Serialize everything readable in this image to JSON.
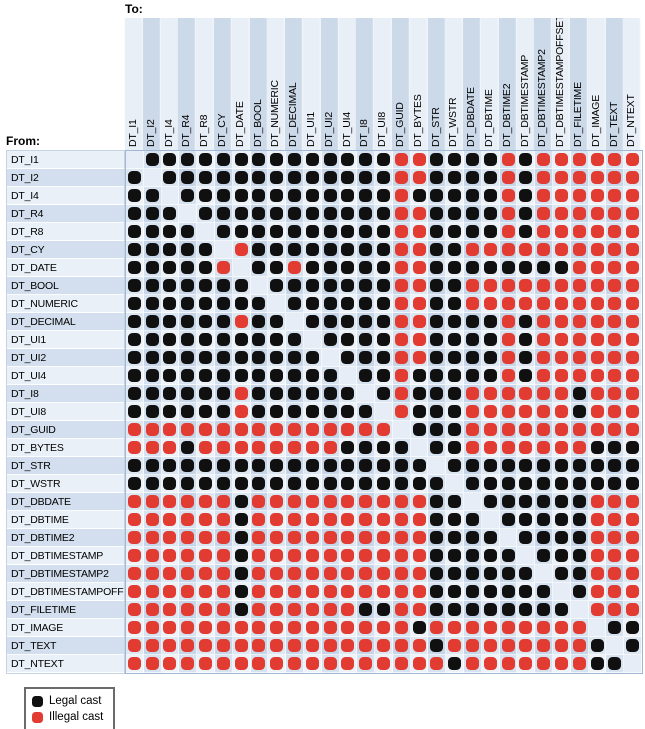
{
  "to_title": "To:",
  "from_title": "From:",
  "legend": {
    "legal_label": "Legal cast",
    "illegal_label": "Illegal cast"
  },
  "chart_data": {
    "type": "heatmap",
    "title": "Legal and illegal casts between data types",
    "x_axis_title": "To:",
    "y_axis_title": "From:",
    "legend": {
      "B": "Legal cast",
      "R": "Illegal cast",
      "-": "same type (no dot)"
    },
    "colors": {
      "legal": "#101010",
      "illegal": "#e13b32"
    },
    "categories": [
      "DT_I1",
      "DT_I2",
      "DT_I4",
      "DT_R4",
      "DT_R8",
      "DT_CY",
      "DT_DATE",
      "DT_BOOL",
      "DT_NUMERIC",
      "DT_DECIMAL",
      "DT_UI1",
      "DT_UI2",
      "DT_UI4",
      "DT_I8",
      "DT_UI8",
      "DT_GUID",
      "DT_BYTES",
      "DT_STR",
      "DT_WSTR",
      "DT_DBDATE",
      "DT_DBTIME",
      "DT_DBTIME2",
      "DT_DBTIMESTAMP",
      "DT_DBTIMESTAMP2",
      "DT_DBTIMESTAMPOFFSET",
      "DT_FILETIME",
      "DT_IMAGE",
      "DT_TEXT",
      "DT_NTEXT"
    ],
    "matrix": [
      "-BBBBBBBBBBBBBBRRBBBBRBRRRRRR",
      "B-BBBBBBBBBBBBBRRBBBBRBRRRRRR",
      "BB-BBBBBBBBBBBBRBBBBBRBRRRRRR",
      "BBB-BBBBBBBBBBBRRBBBBRBRRRRRR",
      "BBBB-BBBBBBBBBBRRBBBBRBRRRRRR",
      "BBBBB-RBBBBBBBBRRBBRRRRRRRRRR",
      "BBBBBR-BBRBBBBBRRBBBBBBBBRRRR",
      "BBBBBBB-BBBBBBBRRBBRRRRRRRRRR",
      "BBBBBBBB-BBBBBBRRBBRRRRRRRRRR",
      "BBBBBBRBB-BBBBBRRBBBBRBRRRRRR",
      "BBBBBBBBBB-BBBBRRBBBBRBRRRRRR",
      "BBBBBBBBBBB-BBBRRBBBBRBRRRRRR",
      "BBBBBBBBBBBB-BBRBBBBBRBRRRRRR",
      "BBBBBBRBBBBBB-BRBBBRRRRRRBRRR",
      "BBBBBBRBBBBBBB-RBBBRRRRRRBRRR",
      "RRRRRRRRRRRRRRR-BBBRRRRRRRRRR",
      "RRRBRRRRRRRRBBBB-BBRRRRRRRBBB",
      "BBBBBBBBBBBBBBBBB-BBBBBBBBBBB",
      "BBBBBBBBBBBBBBBBBB-BBBBBBBBBB",
      "RRRRRRBRRRRRRRRRRBB-BBBBBBRRR",
      "RRRRRRBRRRRRRRRRRBBB-BBBBBRRR",
      "RRRRRRBRRRRRRRRRRBBBB-BBBBRRR",
      "RRRRRRBRRRRRRRRRRBBBBB-BBBRRR",
      "RRRRRRBRRRRRRRRRRBBBBBB-BBRRR",
      "RRRRRRBRRRRRRRRRRBBBBBBB-BRRR",
      "RRRRRRBRRRRRRBBRRBBBBBBBB-RRR",
      "RRRRRRRRRRRRRRRRBRRRRRRRRR-BB",
      "RRRRRRRRRRRRRRRRRBRRRRRRRRB-B",
      "RRRRRRRRRRRRRRRRRRBRRRRRRRBB-"
    ]
  }
}
